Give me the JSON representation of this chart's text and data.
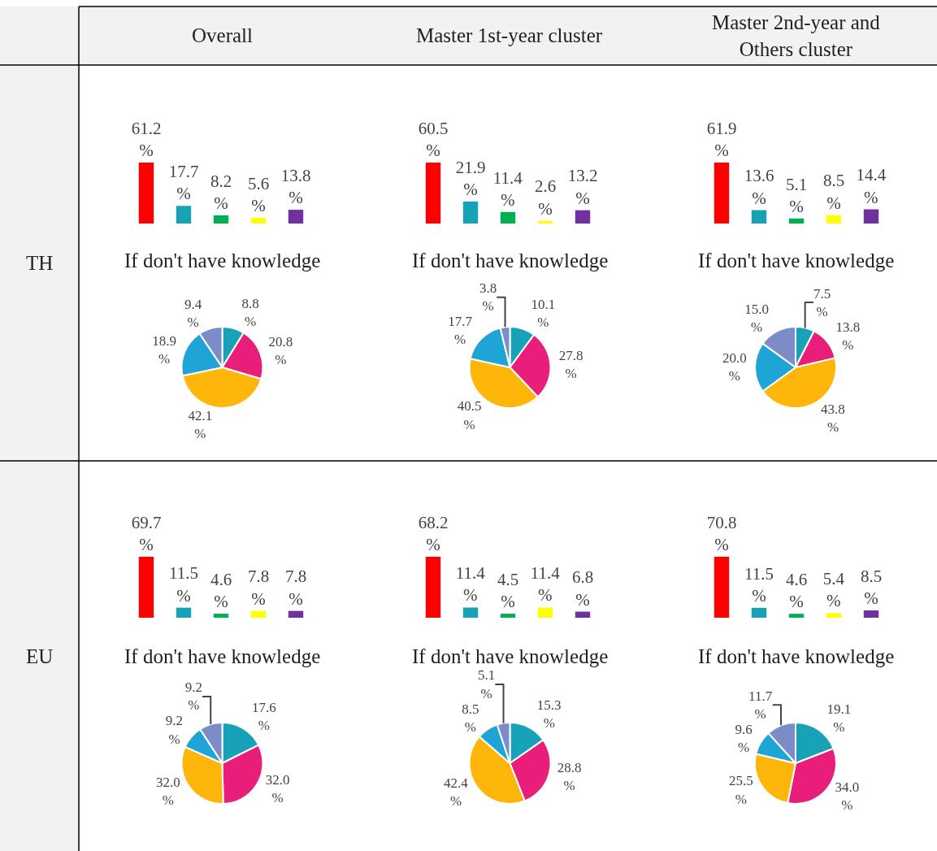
{
  "chart_data": [
    {
      "type": "bar",
      "categories": [
        null,
        null,
        null,
        null,
        null
      ],
      "values": [
        61.2,
        17.7,
        8.2,
        5.6,
        13.8
      ],
      "colors": [
        "#ff0000",
        "#17a2b8",
        "#00b050",
        "#ffff00",
        "#7030a0"
      ],
      "value_labels": [
        "61.2 %",
        "17.7 %",
        "8.2 %",
        "5.6 %",
        "13.8 %"
      ]
    },
    {
      "type": "bar",
      "categories": [
        null,
        null,
        null,
        null,
        null
      ],
      "values": [
        60.5,
        21.9,
        11.4,
        2.6,
        13.2
      ],
      "colors": [
        "#ff0000",
        "#17a2b8",
        "#00b050",
        "#ffff00",
        "#7030a0"
      ],
      "value_labels": [
        "60.5 %",
        "21.9 %",
        "11.4 %",
        "2.6 %",
        "13.2 %"
      ]
    },
    {
      "type": "bar",
      "categories": [
        null,
        null,
        null,
        null,
        null
      ],
      "values": [
        61.9,
        13.6,
        5.1,
        8.5,
        14.4
      ],
      "colors": [
        "#ff0000",
        "#17a2b8",
        "#00b050",
        "#ffff00",
        "#7030a0"
      ],
      "value_labels": [
        "61.9 %",
        "13.6 %",
        "5.1 %",
        "8.5 %",
        "14.4 %"
      ]
    },
    {
      "type": "pie",
      "title": "If don't have knowledge",
      "categories": [
        null,
        null,
        null,
        null,
        null
      ],
      "values": [
        8.8,
        20.8,
        42.1,
        18.9,
        9.4
      ],
      "colors": [
        "#17a2b8",
        "#e91e7a",
        "#ffb60a",
        "#1ea5d6",
        "#7b8cc8"
      ],
      "value_labels": [
        "8.8 %",
        "20.8 %",
        "42.1 %",
        "18.9 %",
        "9.4 %"
      ]
    },
    {
      "type": "pie",
      "title": "If don't have knowledge",
      "categories": [
        null,
        null,
        null,
        null,
        null
      ],
      "values": [
        10.1,
        27.8,
        40.5,
        17.7,
        3.8
      ],
      "colors": [
        "#17a2b8",
        "#e91e7a",
        "#ffb60a",
        "#1ea5d6",
        "#7b8cc8"
      ],
      "value_labels": [
        "10.1 %",
        "27.8 %",
        "40.5 %",
        "17.7 %",
        "3.8 %"
      ]
    },
    {
      "type": "pie",
      "title": "If don't have knowledge",
      "categories": [
        null,
        null,
        null,
        null,
        null
      ],
      "values": [
        7.5,
        13.8,
        43.8,
        20.0,
        15.0
      ],
      "colors": [
        "#17a2b8",
        "#e91e7a",
        "#ffb60a",
        "#1ea5d6",
        "#7b8cc8"
      ],
      "value_labels": [
        "7.5 %",
        "13.8 %",
        "43.8 %",
        "20.0 %",
        "15.0 %"
      ]
    },
    {
      "type": "bar",
      "categories": [
        null,
        null,
        null,
        null,
        null
      ],
      "values": [
        69.7,
        11.5,
        4.6,
        7.8,
        7.8
      ],
      "colors": [
        "#ff0000",
        "#17a2b8",
        "#00b050",
        "#ffff00",
        "#7030a0"
      ],
      "value_labels": [
        "69.7 %",
        "11.5 %",
        "4.6 %",
        "7.8 %",
        "7.8 %"
      ]
    },
    {
      "type": "bar",
      "categories": [
        null,
        null,
        null,
        null,
        null
      ],
      "values": [
        68.2,
        11.4,
        4.5,
        11.4,
        6.8
      ],
      "colors": [
        "#ff0000",
        "#17a2b8",
        "#00b050",
        "#ffff00",
        "#7030a0"
      ],
      "value_labels": [
        "68.2 %",
        "11.4 %",
        "4.5 %",
        "11.4 %",
        "6.8 %"
      ]
    },
    {
      "type": "bar",
      "categories": [
        null,
        null,
        null,
        null,
        null
      ],
      "values": [
        70.8,
        11.5,
        4.6,
        5.4,
        8.5
      ],
      "colors": [
        "#ff0000",
        "#17a2b8",
        "#00b050",
        "#ffff00",
        "#7030a0"
      ],
      "value_labels": [
        "70.8 %",
        "11.5 %",
        "4.6 %",
        "5.4 %",
        "8.5 %"
      ]
    },
    {
      "type": "pie",
      "title": "If don't have knowledge",
      "categories": [
        null,
        null,
        null,
        null,
        null
      ],
      "values": [
        17.6,
        32.0,
        32.0,
        9.2,
        9.2
      ],
      "colors": [
        "#17a2b8",
        "#e91e7a",
        "#ffb60a",
        "#1ea5d6",
        "#7b8cc8"
      ],
      "value_labels": [
        "17.6 %",
        "32.0 %",
        "32.0 %",
        "9.2 %",
        "9.2 %"
      ]
    },
    {
      "type": "pie",
      "title": "If don't have knowledge",
      "categories": [
        null,
        null,
        null,
        null,
        null
      ],
      "values": [
        15.3,
        28.8,
        42.4,
        8.5,
        5.1
      ],
      "colors": [
        "#17a2b8",
        "#e91e7a",
        "#ffb60a",
        "#1ea5d6",
        "#7b8cc8"
      ],
      "value_labels": [
        "15.3 %",
        "28.8 %",
        "42.4 %",
        "8.5 %",
        "5.1 %"
      ]
    },
    {
      "type": "pie",
      "title": "If don't have knowledge",
      "categories": [
        null,
        null,
        null,
        null,
        null
      ],
      "values": [
        19.1,
        34.0,
        25.5,
        9.6,
        11.7
      ],
      "colors": [
        "#17a2b8",
        "#e91e7a",
        "#ffb60a",
        "#1ea5d6",
        "#7b8cc8"
      ],
      "value_labels": [
        "19.1 %",
        "34.0 %",
        "25.5 %",
        "9.6 %",
        "11.7 %"
      ]
    },
    {
      "type": "other",
      "annotations": [
        "Overall",
        "Master 1st-year cluster",
        "Master 2nd-year and Others cluster",
        "TH",
        "EU"
      ]
    }
  ]
}
